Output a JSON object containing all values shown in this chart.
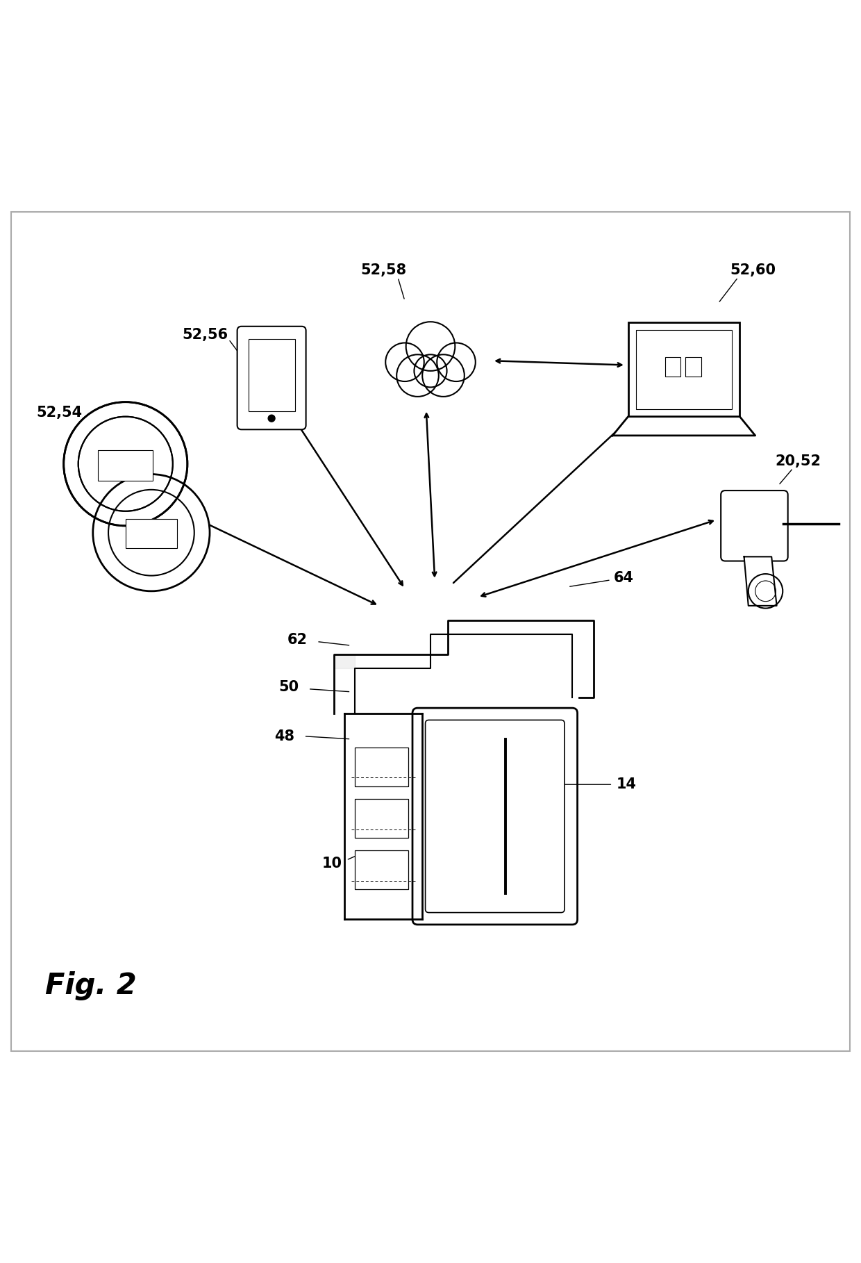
{
  "fig_label": "Fig. 2",
  "background_color": "#ffffff",
  "line_color": "#000000",
  "labels": {
    "52_54": "52,54",
    "52_56": "52,56",
    "52_58": "52,58",
    "52_60": "52,60",
    "20_52": "20,52",
    "62": "62",
    "50": "50",
    "48": "48",
    "10": "10",
    "14": "14",
    "64": "64"
  },
  "figsize": [
    12.4,
    18.18
  ],
  "dpi": 100
}
